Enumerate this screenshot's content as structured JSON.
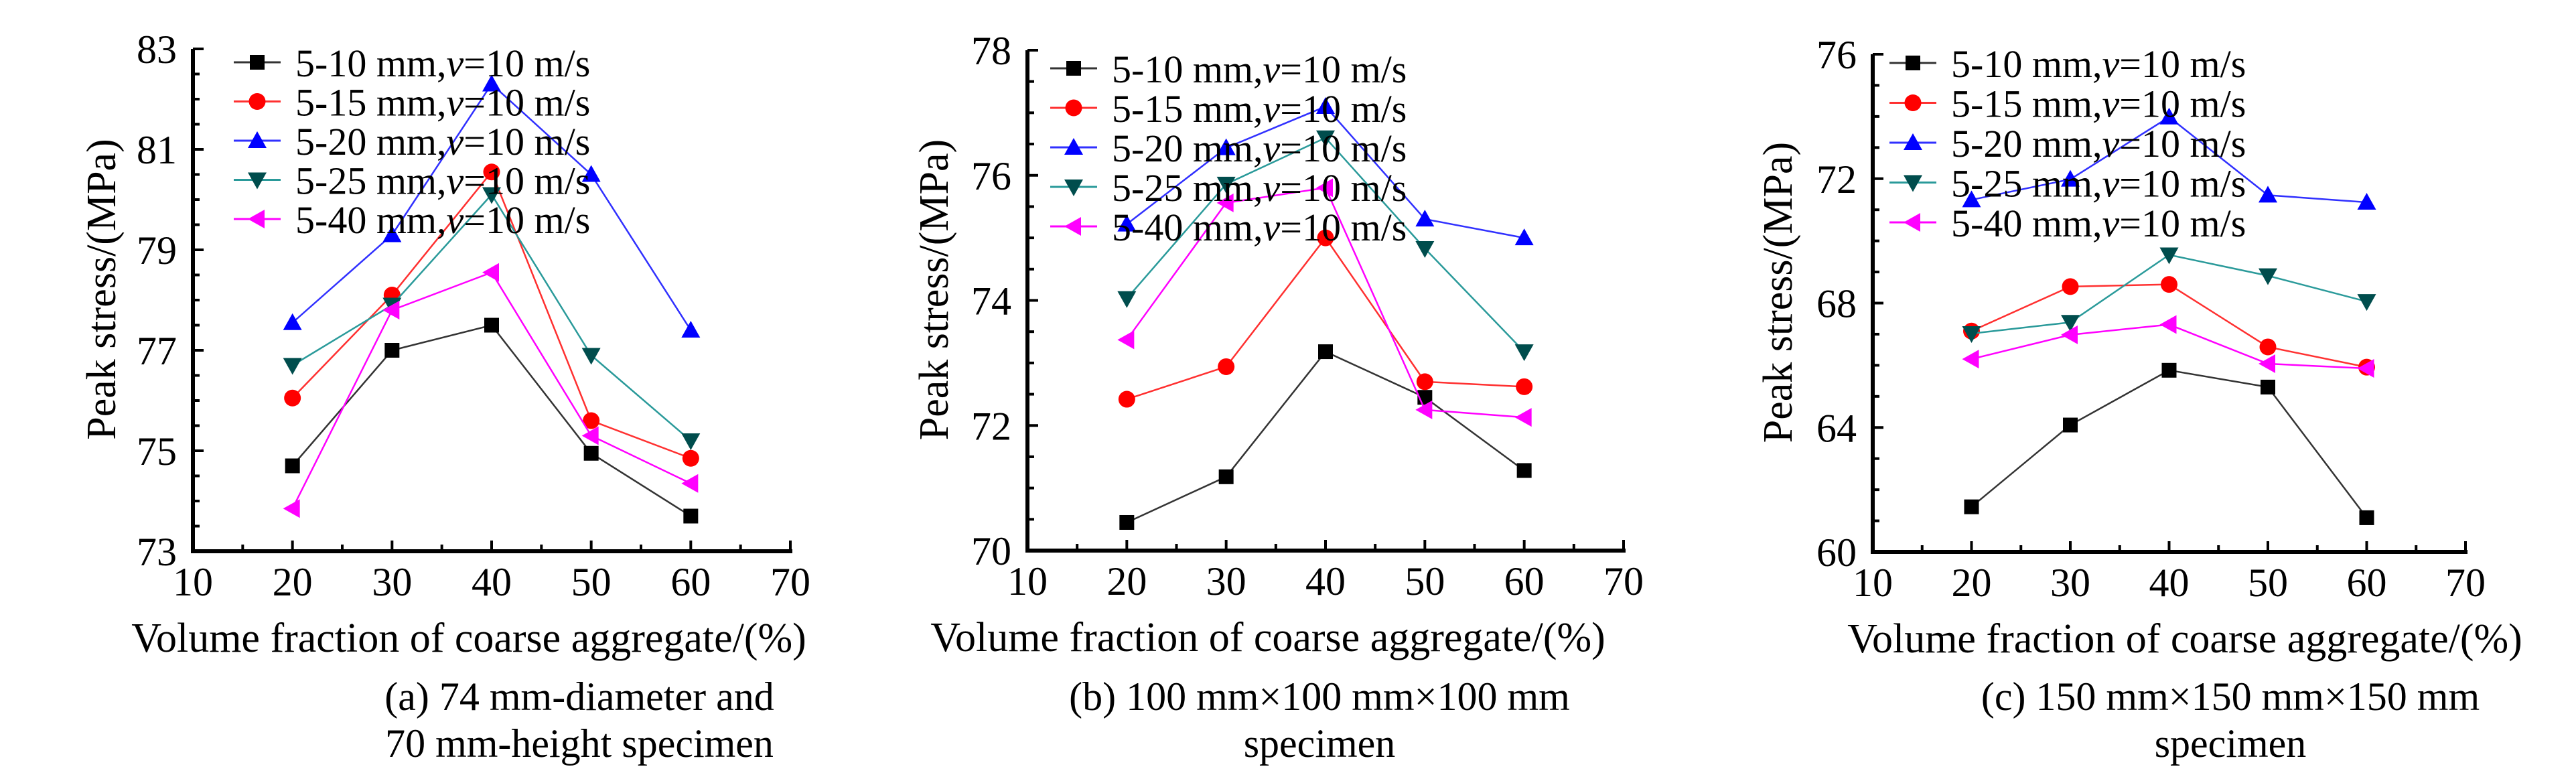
{
  "figure": {
    "legend_template": {
      "prefix_suffix_note": "series labels rendered as '<size>,v=10 m/s' with italic v"
    },
    "series_styles": [
      {
        "name": "5-10 mm",
        "label_prefix": "5-10 mm,",
        "var": "v",
        "label_suffix": "=10 m/s",
        "color": "#000000",
        "line_color": "#333333",
        "marker": "square"
      },
      {
        "name": "5-15 mm",
        "label_prefix": "5-15 mm,",
        "var": "v",
        "label_suffix": "=10 m/s",
        "color": "#ff0000",
        "line_color": "#ff3030",
        "marker": "circle"
      },
      {
        "name": "5-20 mm",
        "label_prefix": "5-20 mm,",
        "var": "v",
        "label_suffix": "=10 m/s",
        "color": "#0000ff",
        "line_color": "#3030ff",
        "marker": "triangle-up"
      },
      {
        "name": "5-25 mm",
        "label_prefix": "5-25 mm,",
        "var": "v",
        "label_suffix": "=10 m/s",
        "color": "#004d4d",
        "line_color": "#2a9a9a",
        "marker": "triangle-down"
      },
      {
        "name": "5-40 mm",
        "label_prefix": "5-40 mm,",
        "var": "v",
        "label_suffix": "=10 m/s",
        "color": "#ff00ff",
        "line_color": "#ff00ff",
        "marker": "triangle-left"
      }
    ]
  },
  "chart_data": [
    {
      "type": "line",
      "panel": "a",
      "caption": [
        "(a) 74 mm-diameter and",
        "70 mm-height specimen"
      ],
      "xlabel": "Volume fraction of coarse aggregate/(%)",
      "ylabel": "Peak stress/(MPa)",
      "xlim": [
        10,
        70
      ],
      "ylim": [
        73,
        83
      ],
      "xticks": [
        10,
        20,
        30,
        40,
        50,
        60,
        70
      ],
      "yticks": [
        73,
        75,
        77,
        79,
        81,
        83
      ],
      "grid": false,
      "legend_position": "top-left",
      "x": [
        20,
        30,
        40,
        50,
        60
      ],
      "series": [
        {
          "name": "5-10 mm,v=10 m/s",
          "values": [
            74.7,
            77.0,
            77.5,
            74.95,
            73.7
          ]
        },
        {
          "name": "5-15 mm,v=10 m/s",
          "values": [
            76.05,
            78.1,
            80.55,
            75.6,
            74.85
          ]
        },
        {
          "name": "5-20 mm,v=10 m/s",
          "values": [
            77.55,
            79.3,
            82.3,
            80.5,
            77.4
          ]
        },
        {
          "name": "5-25 mm,v=10 m/s",
          "values": [
            76.7,
            77.9,
            80.1,
            76.9,
            75.2
          ]
        },
        {
          "name": "5-40 mm,v=10 m/s",
          "values": [
            73.85,
            77.8,
            78.55,
            75.3,
            74.35
          ]
        }
      ]
    },
    {
      "type": "line",
      "panel": "b",
      "caption": [
        "(b) 100 mm×100 mm×100 mm",
        "specimen"
      ],
      "xlabel": "Volume fraction of coarse aggregate/(%)",
      "ylabel": "Peak stress/(MPa)",
      "xlim": [
        10,
        70
      ],
      "ylim": [
        70,
        78
      ],
      "xticks": [
        10,
        20,
        30,
        40,
        50,
        60,
        70
      ],
      "yticks": [
        70,
        72,
        74,
        76,
        78
      ],
      "grid": false,
      "legend_position": "top-left",
      "x": [
        20,
        30,
        40,
        50,
        60
      ],
      "series": [
        {
          "name": "5-10 mm,v=10 m/s",
          "values": [
            70.45,
            71.18,
            73.18,
            72.45,
            71.28
          ]
        },
        {
          "name": "5-15 mm,v=10 m/s",
          "values": [
            72.42,
            72.94,
            75.0,
            72.7,
            72.62
          ]
        },
        {
          "name": "5-20 mm,v=10 m/s",
          "values": [
            75.22,
            76.44,
            77.1,
            75.3,
            75.0
          ]
        },
        {
          "name": "5-25 mm,v=10 m/s",
          "values": [
            74.03,
            75.86,
            76.6,
            74.83,
            73.18
          ]
        },
        {
          "name": "5-40 mm,v=10 m/s",
          "values": [
            73.37,
            75.56,
            75.8,
            72.25,
            72.13
          ]
        }
      ]
    },
    {
      "type": "line",
      "panel": "c",
      "caption": [
        "(c) 150 mm×150 mm×150 mm",
        "specimen"
      ],
      "xlabel": "Volume fraction of coarse aggregate/(%)",
      "ylabel": "Peak stress/(MPa)",
      "xlim": [
        10,
        70
      ],
      "ylim": [
        60,
        76
      ],
      "xticks": [
        10,
        20,
        30,
        40,
        50,
        60,
        70
      ],
      "yticks": [
        60,
        64,
        68,
        72,
        76
      ],
      "grid": false,
      "legend_position": "top-left",
      "x": [
        20,
        30,
        40,
        50,
        60
      ],
      "series": [
        {
          "name": "5-10 mm,v=10 m/s",
          "values": [
            61.45,
            64.08,
            65.84,
            65.3,
            61.1
          ]
        },
        {
          "name": "5-15 mm,v=10 m/s",
          "values": [
            67.1,
            68.53,
            68.6,
            66.59,
            65.94
          ]
        },
        {
          "name": "5-20 mm,v=10 m/s",
          "values": [
            71.32,
            71.98,
            73.98,
            71.47,
            71.24
          ]
        },
        {
          "name": "5-25 mm,v=10 m/s",
          "values": [
            67.02,
            67.38,
            69.55,
            68.88,
            68.05
          ]
        },
        {
          "name": "5-40 mm,v=10 m/s",
          "values": [
            66.2,
            66.98,
            67.31,
            66.05,
            65.9
          ]
        }
      ]
    }
  ]
}
